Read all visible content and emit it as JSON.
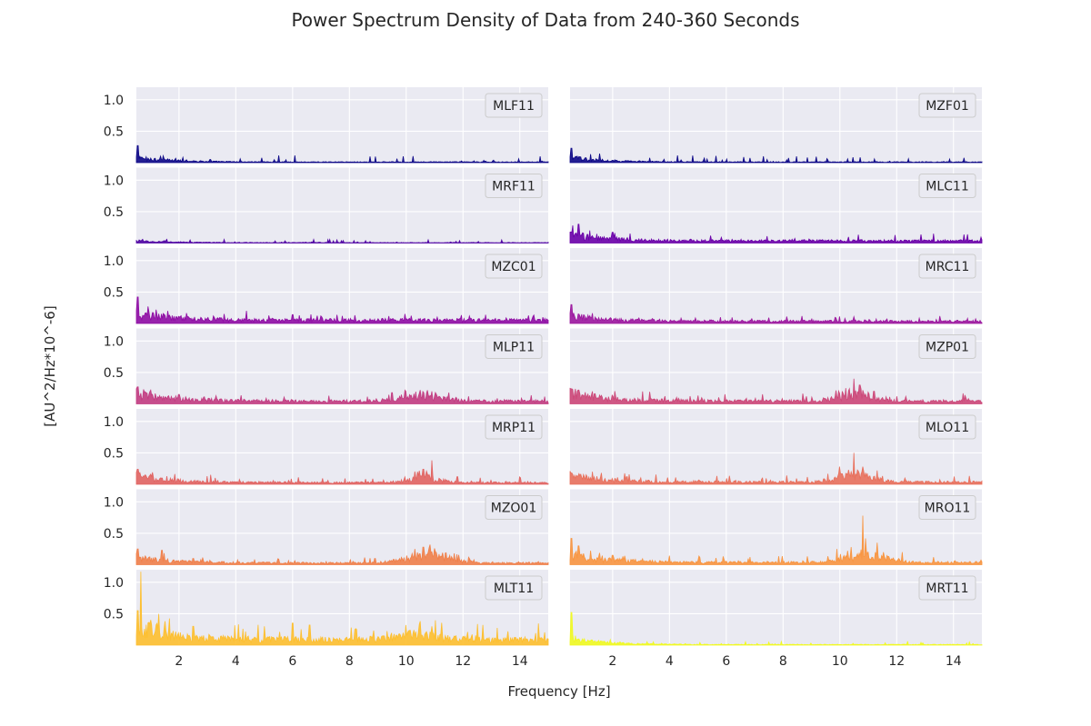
{
  "figure": {
    "title": "Power Spectrum Density of Data from 240-360 Seconds",
    "xlabel": "Frequency [Hz]",
    "ylabel": "[AU^2/Hz*10^-6]"
  },
  "colors": {
    "axes_bg": "#eaeaf2",
    "grid": "#ffffff",
    "legend_bg": "#eaeaf2",
    "legend_border": "#cccccc"
  },
  "chart_data": {
    "type": "line",
    "layout": "7 rows x 2 columns of small multiples, shared axes",
    "xlim": [
      0.5,
      15
    ],
    "ylim": [
      0,
      1.2
    ],
    "xticks": [
      2,
      4,
      6,
      8,
      10,
      12,
      14
    ],
    "yticks": [
      0.5,
      1.0
    ],
    "ytick_labels": [
      "0.5",
      "1.0"
    ],
    "grid": true,
    "legend_position": "top-right",
    "panels": [
      {
        "name": "MLF11",
        "color": "#0d0887",
        "base": 0.012,
        "low": 0.08,
        "alpha": 0.1,
        "peaks": [
          [
            0.55,
            0.27
          ],
          [
            0.7,
            0.09
          ],
          [
            1.0,
            0.05
          ],
          [
            3.1,
            0.05
          ]
        ]
      },
      {
        "name": "MZF01",
        "color": "#0d0887",
        "base": 0.012,
        "low": 0.08,
        "alpha": 0.1,
        "peaks": [
          [
            0.55,
            0.23
          ],
          [
            0.7,
            0.1
          ],
          [
            1.3,
            0.05
          ]
        ]
      },
      {
        "name": "MRF11",
        "color": "#4e02a2",
        "base": 0.008,
        "low": 0.03,
        "alpha": 0.05,
        "peaks": [
          [
            0.6,
            0.05
          ],
          [
            0.9,
            0.03
          ]
        ]
      },
      {
        "name": "MLC11",
        "color": "#6a00a8",
        "base": 0.04,
        "low": 0.12,
        "alpha": 0.11,
        "peaks": [
          [
            0.6,
            0.28
          ],
          [
            0.8,
            0.3
          ],
          [
            1.2,
            0.2
          ],
          [
            2.0,
            0.17
          ]
        ]
      },
      {
        "name": "MZC01",
        "color": "#8f0da4",
        "base": 0.06,
        "low": 0.12,
        "alpha": 0.12,
        "peaks": [
          [
            0.55,
            0.42
          ],
          [
            0.9,
            0.27
          ],
          [
            1.2,
            0.22
          ],
          [
            1.6,
            0.2
          ],
          [
            3.6,
            0.15
          ],
          [
            6.0,
            0.14
          ],
          [
            7.0,
            0.12
          ],
          [
            14.8,
            0.1
          ]
        ]
      },
      {
        "name": "MRC11",
        "color": "#9c179e",
        "base": 0.04,
        "low": 0.1,
        "alpha": 0.08,
        "peaks": [
          [
            0.55,
            0.3
          ],
          [
            0.8,
            0.15
          ],
          [
            3.4,
            0.08
          ],
          [
            5.8,
            0.1
          ],
          [
            10.0,
            0.08
          ]
        ]
      },
      {
        "name": "MLP11",
        "color": "#c23c81",
        "base": 0.05,
        "low": 0.15,
        "alpha": 0.1,
        "bump": [
          10.5,
          1.0,
          0.12
        ],
        "peaks": [
          [
            0.55,
            0.27
          ],
          [
            1.0,
            0.22
          ],
          [
            2.0,
            0.15
          ],
          [
            9.5,
            0.18
          ],
          [
            10.0,
            0.2
          ],
          [
            10.5,
            0.22
          ],
          [
            10.9,
            0.2
          ],
          [
            11.5,
            0.18
          ],
          [
            12.2,
            0.12
          ]
        ]
      },
      {
        "name": "MZP01",
        "color": "#cc4778",
        "base": 0.05,
        "low": 0.15,
        "alpha": 0.12,
        "bump": [
          10.5,
          0.8,
          0.14
        ],
        "peaks": [
          [
            0.55,
            0.24
          ],
          [
            0.8,
            0.22
          ],
          [
            1.3,
            0.2
          ],
          [
            10.2,
            0.25
          ],
          [
            10.5,
            0.4
          ],
          [
            10.7,
            0.3
          ],
          [
            11.2,
            0.2
          ],
          [
            12.0,
            0.12
          ]
        ]
      },
      {
        "name": "MRP11",
        "color": "#e16462",
        "base": 0.03,
        "low": 0.12,
        "alpha": 0.1,
        "bump": [
          10.6,
          0.8,
          0.1
        ],
        "peaks": [
          [
            0.55,
            0.24
          ],
          [
            1.0,
            0.16
          ],
          [
            1.4,
            0.1
          ],
          [
            10.4,
            0.2
          ],
          [
            10.6,
            0.24
          ],
          [
            10.9,
            0.38
          ],
          [
            11.8,
            0.12
          ]
        ]
      },
      {
        "name": "MLO11",
        "color": "#e8705c",
        "base": 0.04,
        "low": 0.12,
        "alpha": 0.1,
        "bump": [
          10.5,
          0.9,
          0.14
        ],
        "peaks": [
          [
            0.55,
            0.18
          ],
          [
            1.3,
            0.2
          ],
          [
            1.6,
            0.18
          ],
          [
            2.5,
            0.12
          ],
          [
            10.0,
            0.28
          ],
          [
            10.5,
            0.5
          ],
          [
            10.8,
            0.28
          ],
          [
            11.3,
            0.22
          ],
          [
            12.3,
            0.1
          ]
        ]
      },
      {
        "name": "MZO01",
        "color": "#f0804a",
        "base": 0.03,
        "low": 0.1,
        "alpha": 0.1,
        "bump": [
          10.8,
          1.2,
          0.14
        ],
        "peaks": [
          [
            0.55,
            0.25
          ],
          [
            1.4,
            0.23
          ],
          [
            2.5,
            0.1
          ],
          [
            8.9,
            0.1
          ],
          [
            10.3,
            0.25
          ],
          [
            10.6,
            0.28
          ],
          [
            11.0,
            0.26
          ],
          [
            11.7,
            0.18
          ],
          [
            12.2,
            0.12
          ]
        ]
      },
      {
        "name": "MRO11",
        "color": "#f89540",
        "base": 0.04,
        "low": 0.15,
        "alpha": 0.1,
        "bump": [
          10.9,
          1.0,
          0.14
        ],
        "peaks": [
          [
            0.55,
            0.42
          ],
          [
            0.8,
            0.3
          ],
          [
            2.0,
            0.15
          ],
          [
            9.9,
            0.25
          ],
          [
            10.4,
            0.28
          ],
          [
            10.8,
            0.78
          ],
          [
            10.9,
            0.42
          ],
          [
            11.3,
            0.35
          ],
          [
            12.2,
            0.2
          ],
          [
            13.3,
            0.12
          ]
        ]
      },
      {
        "name": "MLT11",
        "color": "#fdbf2f",
        "base": 0.1,
        "low": 0.25,
        "alpha": 0.25,
        "bump": [
          10.3,
          1.2,
          0.08
        ],
        "peaks": [
          [
            0.55,
            0.55
          ],
          [
            0.65,
            1.17
          ],
          [
            1.0,
            0.4
          ],
          [
            1.5,
            0.38
          ],
          [
            2.5,
            0.3
          ],
          [
            5.0,
            0.3
          ],
          [
            6.0,
            0.35
          ],
          [
            6.6,
            0.32
          ],
          [
            10.0,
            0.32
          ],
          [
            10.5,
            0.38
          ],
          [
            10.9,
            0.3
          ],
          [
            14.0,
            0.12
          ]
        ]
      },
      {
        "name": "MRT11",
        "color": "#f0f921",
        "base": 0.01,
        "low": 0.1,
        "alpha": 0.05,
        "peaks": [
          [
            0.55,
            0.52
          ],
          [
            0.7,
            0.15
          ],
          [
            1.0,
            0.1
          ],
          [
            1.6,
            0.05
          ]
        ]
      }
    ]
  }
}
